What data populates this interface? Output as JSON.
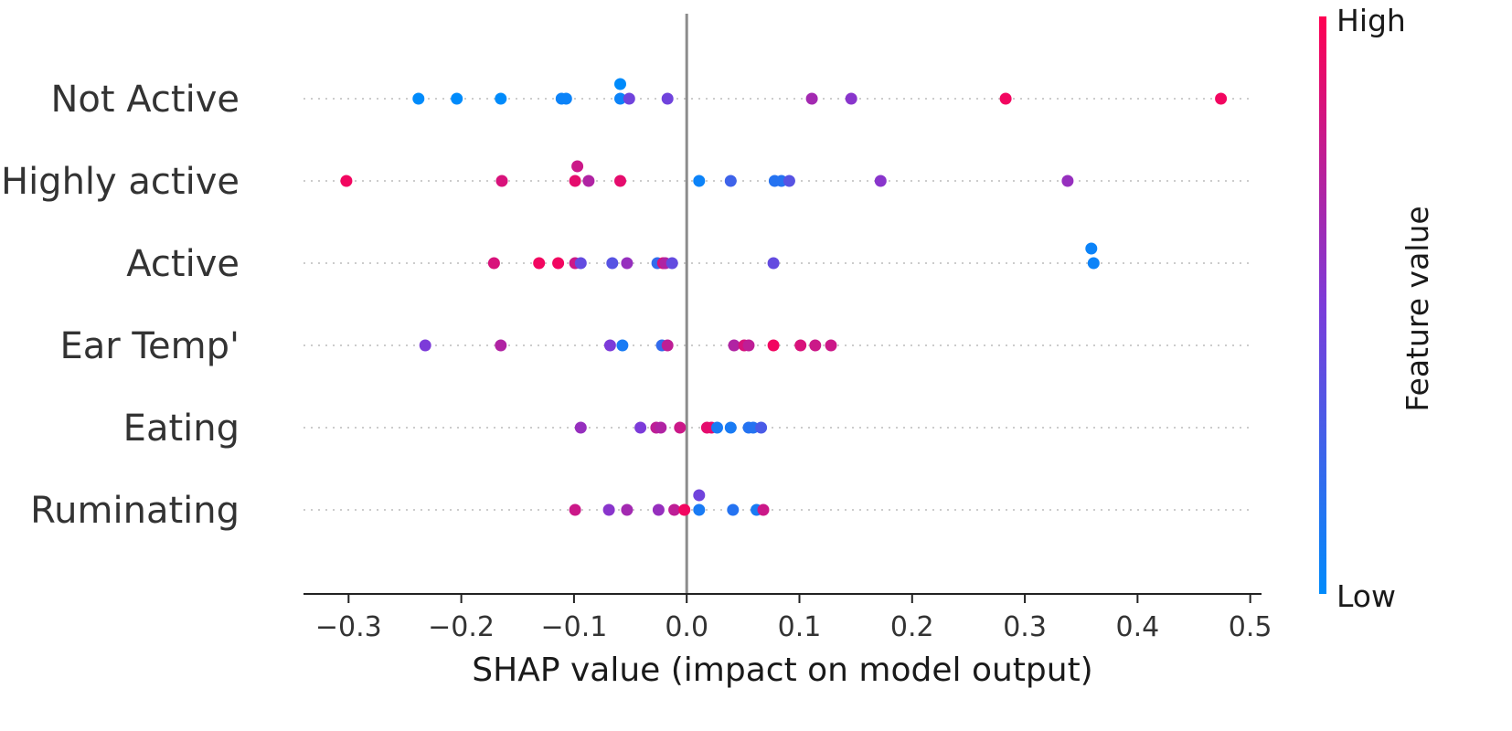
{
  "chart_data": {
    "type": "scatter",
    "subtype": "shap-beeswarm",
    "xlabel": "SHAP value (impact on model output)",
    "xlim": [
      -0.34,
      0.51
    ],
    "x_ticks": [
      -0.3,
      -0.2,
      -0.1,
      0.0,
      0.1,
      0.2,
      0.3,
      0.4,
      0.5
    ],
    "x_tick_labels": [
      "−0.3",
      "−0.2",
      "−0.1",
      "0.0",
      "0.1",
      "0.2",
      "0.3",
      "0.4",
      "0.5"
    ],
    "zero_line": 0.0,
    "colorbar": {
      "label": "Feature value",
      "high_label": "High",
      "low_label": "Low",
      "high_color": "#ff0052",
      "low_color": "#008bfb"
    },
    "features": [
      {
        "name": "Not Active",
        "points": [
          {
            "x": -0.238,
            "v": 0.0
          },
          {
            "x": -0.204,
            "v": 0.0
          },
          {
            "x": -0.165,
            "v": 0.0
          },
          {
            "x": -0.111,
            "v": 0.05
          },
          {
            "x": -0.107,
            "v": 0.05
          },
          {
            "x": -0.059,
            "v": 0.05
          },
          {
            "x": -0.059,
            "v": 0.0,
            "dy": -1
          },
          {
            "x": -0.051,
            "v": 0.45
          },
          {
            "x": -0.017,
            "v": 0.45
          },
          {
            "x": 0.111,
            "v": 0.65
          },
          {
            "x": 0.146,
            "v": 0.55
          },
          {
            "x": 0.283,
            "v": 0.95
          },
          {
            "x": 0.474,
            "v": 0.95
          }
        ]
      },
      {
        "name": "Highly active",
        "points": [
          {
            "x": -0.302,
            "v": 0.95
          },
          {
            "x": -0.164,
            "v": 0.85
          },
          {
            "x": -0.097,
            "v": 0.8,
            "dy": -1
          },
          {
            "x": -0.099,
            "v": 0.9
          },
          {
            "x": -0.087,
            "v": 0.7
          },
          {
            "x": -0.059,
            "v": 0.9
          },
          {
            "x": 0.011,
            "v": 0.05
          },
          {
            "x": 0.039,
            "v": 0.25
          },
          {
            "x": 0.078,
            "v": 0.15
          },
          {
            "x": 0.084,
            "v": 0.15
          },
          {
            "x": 0.091,
            "v": 0.35
          },
          {
            "x": 0.172,
            "v": 0.55
          },
          {
            "x": 0.338,
            "v": 0.6
          }
        ]
      },
      {
        "name": "Active",
        "points": [
          {
            "x": -0.171,
            "v": 0.85
          },
          {
            "x": -0.131,
            "v": 0.95
          },
          {
            "x": -0.114,
            "v": 0.95
          },
          {
            "x": -0.099,
            "v": 0.8
          },
          {
            "x": -0.094,
            "v": 0.4
          },
          {
            "x": -0.066,
            "v": 0.35
          },
          {
            "x": -0.053,
            "v": 0.6
          },
          {
            "x": -0.026,
            "v": 0.2
          },
          {
            "x": -0.021,
            "v": 0.85
          },
          {
            "x": -0.019,
            "v": 0.7
          },
          {
            "x": -0.013,
            "v": 0.4
          },
          {
            "x": 0.077,
            "v": 0.4
          },
          {
            "x": 0.359,
            "v": 0.05,
            "dy": -1
          },
          {
            "x": 0.361,
            "v": 0.05
          }
        ]
      },
      {
        "name": "Ear Temp'",
        "points": [
          {
            "x": -0.232,
            "v": 0.5
          },
          {
            "x": -0.165,
            "v": 0.7
          },
          {
            "x": -0.068,
            "v": 0.5
          },
          {
            "x": -0.057,
            "v": 0.1
          },
          {
            "x": -0.022,
            "v": 0.2
          },
          {
            "x": -0.017,
            "v": 0.75
          },
          {
            "x": 0.042,
            "v": 0.7
          },
          {
            "x": 0.051,
            "v": 0.85
          },
          {
            "x": 0.055,
            "v": 0.75
          },
          {
            "x": 0.077,
            "v": 0.95
          },
          {
            "x": 0.101,
            "v": 0.85
          },
          {
            "x": 0.114,
            "v": 0.8
          },
          {
            "x": 0.128,
            "v": 0.8
          }
        ]
      },
      {
        "name": "Eating",
        "points": [
          {
            "x": -0.094,
            "v": 0.6
          },
          {
            "x": -0.041,
            "v": 0.5
          },
          {
            "x": -0.027,
            "v": 0.75
          },
          {
            "x": -0.023,
            "v": 0.7
          },
          {
            "x": -0.006,
            "v": 0.8
          },
          {
            "x": 0.018,
            "v": 0.9
          },
          {
            "x": 0.022,
            "v": 0.9
          },
          {
            "x": 0.027,
            "v": 0.1
          },
          {
            "x": 0.039,
            "v": 0.1
          },
          {
            "x": 0.055,
            "v": 0.15
          },
          {
            "x": 0.059,
            "v": 0.15
          },
          {
            "x": 0.066,
            "v": 0.3
          }
        ]
      },
      {
        "name": "Ruminating",
        "points": [
          {
            "x": -0.099,
            "v": 0.8
          },
          {
            "x": -0.069,
            "v": 0.55
          },
          {
            "x": -0.053,
            "v": 0.65
          },
          {
            "x": -0.025,
            "v": 0.6
          },
          {
            "x": -0.011,
            "v": 0.75
          },
          {
            "x": -0.002,
            "v": 0.95
          },
          {
            "x": 0.011,
            "v": 0.45,
            "dy": -1
          },
          {
            "x": 0.011,
            "v": 0.1
          },
          {
            "x": 0.041,
            "v": 0.15
          },
          {
            "x": 0.062,
            "v": 0.1
          },
          {
            "x": 0.068,
            "v": 0.8
          }
        ]
      }
    ]
  }
}
